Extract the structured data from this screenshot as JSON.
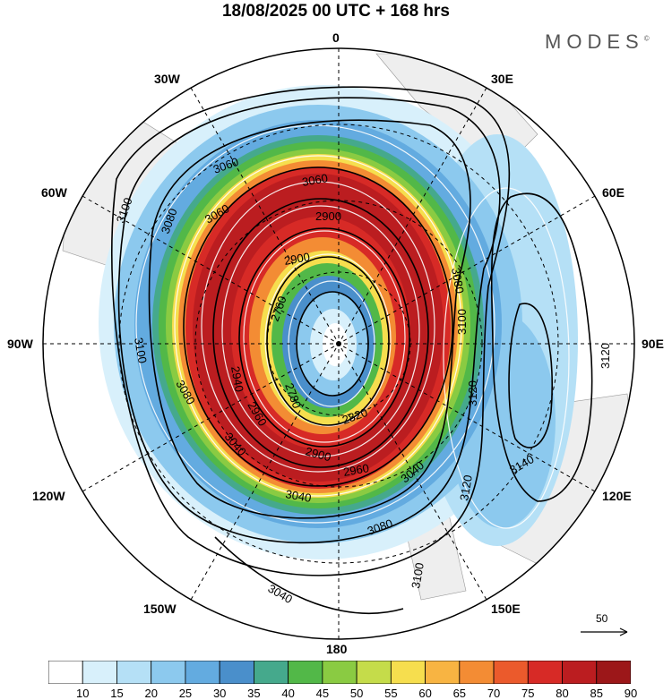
{
  "title": "18/08/2025  00 UTC  + 168 hrs",
  "logo": "MODES",
  "logo_mark": "©",
  "longitude_labels": {
    "top": "0",
    "bottom": "180",
    "left": "90W",
    "right": "90E",
    "upper_left_30": "30W",
    "upper_right_30": "30E",
    "upper_left_60": "60W",
    "upper_right_60": "60E",
    "lower_left_120": "120W",
    "lower_right_120": "120E",
    "lower_left_150": "150W",
    "lower_right_150": "150E"
  },
  "contour_labels": [
    "3060",
    "3060",
    "3060",
    "3100",
    "3080",
    "3100",
    "3080",
    "3040",
    "3040",
    "2960",
    "2900",
    "2900",
    "2760",
    "2940",
    "2780",
    "2820",
    "2900",
    "2960",
    "3040",
    "3080",
    "3100",
    "3120",
    "3120",
    "3080",
    "3100",
    "3120",
    "3140",
    "3040"
  ],
  "vector_reference": "50",
  "colorbar": {
    "ticks": [
      "10",
      "15",
      "20",
      "25",
      "30",
      "35",
      "40",
      "45",
      "50",
      "55",
      "60",
      "65",
      "70",
      "75",
      "80",
      "85",
      "90"
    ],
    "colors": [
      "#ffffff",
      "#d8f0fb",
      "#b5e0f6",
      "#8cc9ee",
      "#63abe0",
      "#4a8fcb",
      "#45a98c",
      "#52b848",
      "#8acb42",
      "#c5dc4a",
      "#f6de4e",
      "#f8b442",
      "#f38c34",
      "#eb5a2c",
      "#d72a26",
      "#bb1d20",
      "#9c1719"
    ]
  },
  "colors": {
    "land": "#eeeeee",
    "contour": "#000000",
    "vectors": "#ffffff"
  }
}
